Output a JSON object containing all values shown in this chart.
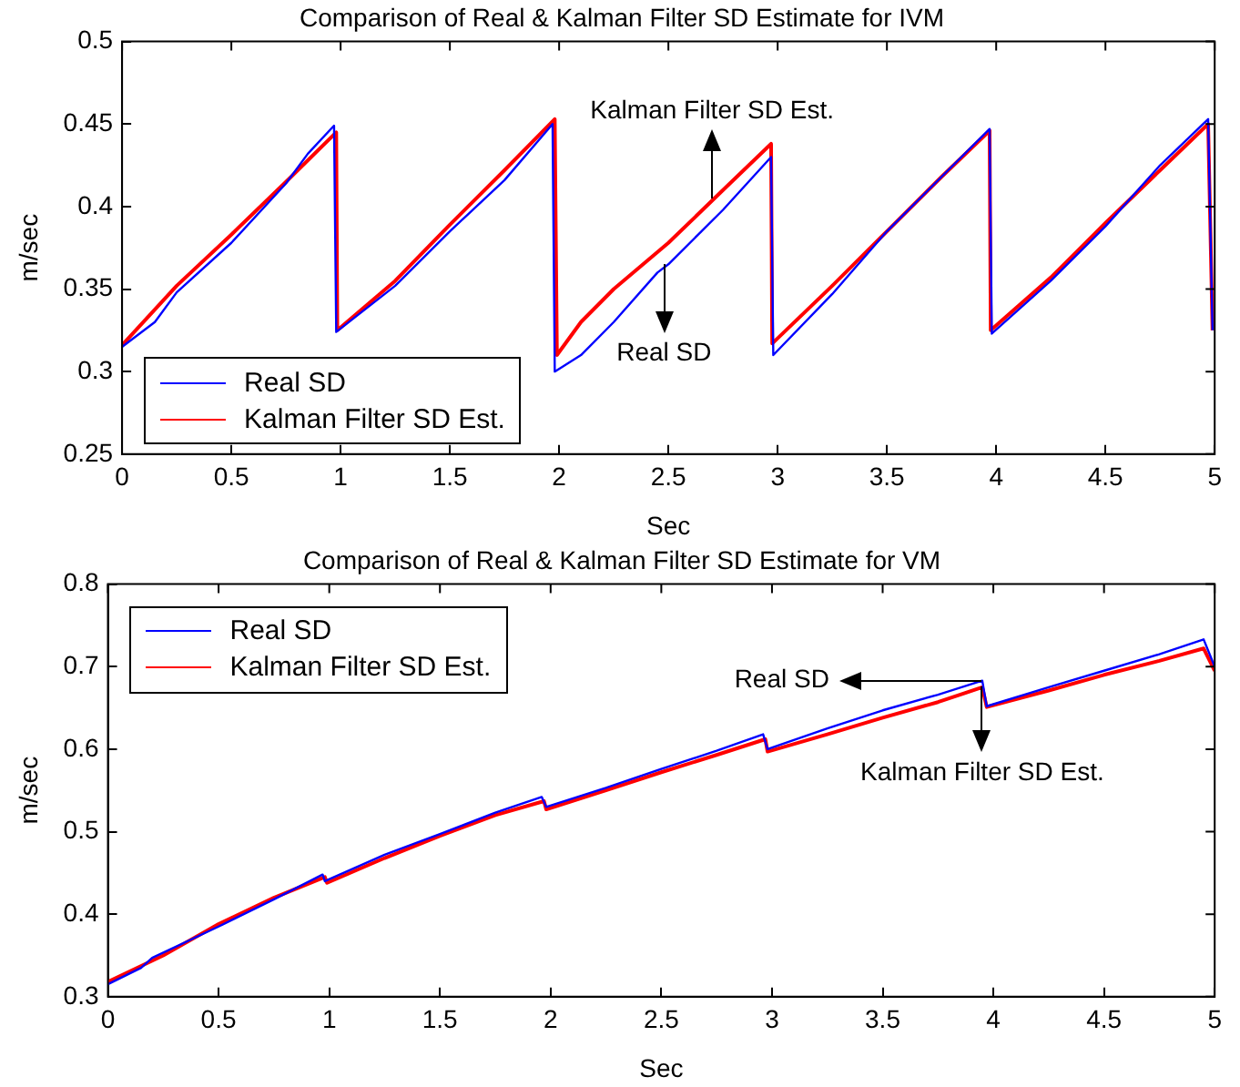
{
  "chart_data": [
    {
      "type": "line",
      "title": "Comparison of Real & Kalman Filter SD Estimate for IVM",
      "xlabel": "Sec",
      "ylabel": "m/sec",
      "xlim": [
        0,
        5
      ],
      "xticks": [
        0,
        0.5,
        1,
        1.5,
        2,
        2.5,
        3,
        3.5,
        4,
        4.5,
        5
      ],
      "ylim": [
        0.25,
        0.5
      ],
      "yticks": [
        0.25,
        0.3,
        0.35,
        0.4,
        0.45,
        0.5
      ],
      "grid": false,
      "legend": "bottom left",
      "marker": "none",
      "line_style": "solid",
      "series": [
        {
          "name": "Real SD",
          "color": "#0000ff",
          "x": [
            0,
            0.15,
            0.25,
            0.5,
            0.75,
            0.85,
            0.97,
            0.98,
            1.25,
            1.5,
            1.75,
            1.97,
            1.98,
            2.1,
            2.25,
            2.45,
            2.5,
            2.75,
            2.97,
            2.98,
            3.25,
            3.5,
            3.75,
            3.97,
            3.98,
            4.25,
            4.5,
            4.75,
            4.97,
            4.99
          ],
          "values": [
            0.315,
            0.33,
            0.348,
            0.378,
            0.414,
            0.432,
            0.449,
            0.324,
            0.352,
            0.385,
            0.416,
            0.45,
            0.3,
            0.31,
            0.33,
            0.36,
            0.365,
            0.398,
            0.43,
            0.31,
            0.347,
            0.385,
            0.418,
            0.447,
            0.323,
            0.355,
            0.388,
            0.425,
            0.453,
            0.325
          ]
        },
        {
          "name": "Kalman Filter SD Est.",
          "color": "#ff0000",
          "x": [
            0,
            0.25,
            0.5,
            0.75,
            0.98,
            0.985,
            1.25,
            1.5,
            1.75,
            1.98,
            1.99,
            2.1,
            2.25,
            2.5,
            2.75,
            2.97,
            2.975,
            3.25,
            3.5,
            3.75,
            3.97,
            3.975,
            4.25,
            4.5,
            4.75,
            4.97,
            4.99
          ],
          "values": [
            0.316,
            0.352,
            0.383,
            0.415,
            0.445,
            0.325,
            0.355,
            0.389,
            0.422,
            0.453,
            0.31,
            0.33,
            0.35,
            0.378,
            0.41,
            0.438,
            0.317,
            0.352,
            0.385,
            0.418,
            0.446,
            0.325,
            0.357,
            0.39,
            0.422,
            0.45,
            0.325
          ]
        }
      ],
      "annotations": [
        {
          "text": "Kalman Filter SD Est.",
          "x": 2.7,
          "y": 0.405
        },
        {
          "text": "Real SD",
          "x": 2.48,
          "y": 0.365
        }
      ]
    },
    {
      "type": "line",
      "title": "Comparison of Real & Kalman Filter SD Estimate for VM",
      "xlabel": "Sec",
      "ylabel": "m/sec",
      "xlim": [
        0,
        5
      ],
      "xticks": [
        0,
        0.5,
        1,
        1.5,
        2,
        2.5,
        3,
        3.5,
        4,
        4.5,
        5
      ],
      "ylim": [
        0.3,
        0.8
      ],
      "yticks": [
        0.3,
        0.4,
        0.5,
        0.6,
        0.7,
        0.8
      ],
      "grid": false,
      "legend": "top left",
      "marker": "none",
      "line_style": "solid",
      "series": [
        {
          "name": "Real SD",
          "color": "#0000ff",
          "x": [
            0,
            0.15,
            0.2,
            0.5,
            0.75,
            0.97,
            0.98,
            1.25,
            1.5,
            1.75,
            1.96,
            1.98,
            2.25,
            2.5,
            2.75,
            2.96,
            2.98,
            3.25,
            3.5,
            3.75,
            3.95,
            3.97,
            4.25,
            4.5,
            4.75,
            4.95,
            5
          ],
          "values": [
            0.315,
            0.335,
            0.347,
            0.385,
            0.418,
            0.448,
            0.44,
            0.472,
            0.497,
            0.523,
            0.542,
            0.53,
            0.553,
            0.576,
            0.598,
            0.618,
            0.6,
            0.625,
            0.647,
            0.666,
            0.683,
            0.652,
            0.675,
            0.695,
            0.715,
            0.733,
            0.7
          ]
        },
        {
          "name": "Kalman Filter SD Est.",
          "color": "#ff0000",
          "x": [
            0,
            0.25,
            0.5,
            0.75,
            0.98,
            0.99,
            1.25,
            1.5,
            1.75,
            1.97,
            1.98,
            2.25,
            2.5,
            2.75,
            2.97,
            2.98,
            3.25,
            3.5,
            3.75,
            3.95,
            3.97,
            4.25,
            4.5,
            4.75,
            4.95,
            5
          ],
          "values": [
            0.318,
            0.35,
            0.388,
            0.42,
            0.445,
            0.438,
            0.468,
            0.495,
            0.52,
            0.537,
            0.527,
            0.55,
            0.572,
            0.593,
            0.612,
            0.597,
            0.618,
            0.638,
            0.657,
            0.675,
            0.651,
            0.671,
            0.69,
            0.707,
            0.722,
            0.695
          ]
        }
      ],
      "annotations": [
        {
          "text": "Real SD",
          "x": 3.95,
          "y": 0.683
        },
        {
          "text": "Kalman Filter SD Est.",
          "x": 3.95,
          "y": 0.675
        }
      ]
    }
  ]
}
